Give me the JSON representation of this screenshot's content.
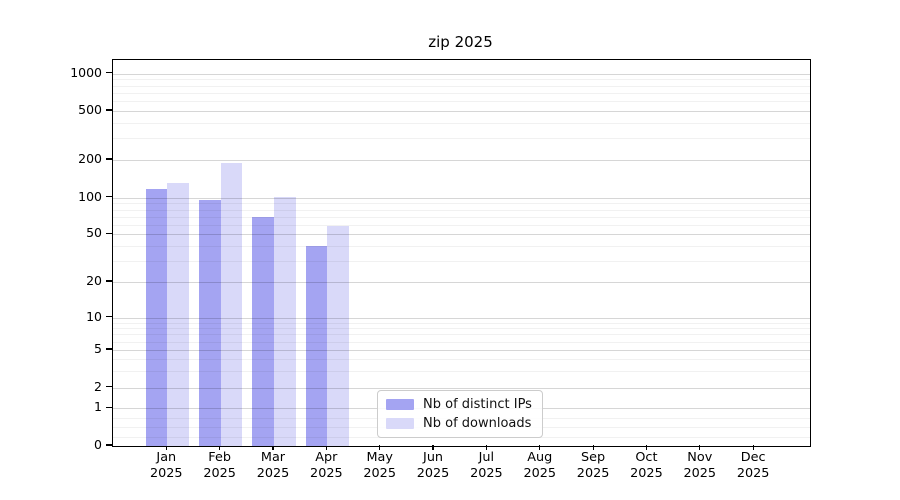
{
  "chart_data": {
    "type": "bar",
    "title": "zip 2025",
    "x_months": [
      "Jan",
      "Feb",
      "Mar",
      "Apr",
      "May",
      "Jun",
      "Jul",
      "Aug",
      "Sep",
      "Oct",
      "Nov",
      "Dec"
    ],
    "x_year": "2025",
    "series": [
      {
        "name": "Nb of distinct IPs",
        "color": "#a4a4f2",
        "values": [
          117,
          95,
          70,
          40,
          null,
          null,
          null,
          null,
          null,
          null,
          null,
          null
        ]
      },
      {
        "name": "Nb of downloads",
        "color": "#d9d9f9",
        "values": [
          131,
          188,
          102,
          58,
          null,
          null,
          null,
          null,
          null,
          null,
          null,
          null
        ]
      }
    ],
    "yscale": "symlog",
    "yticks": [
      0,
      1,
      2,
      5,
      10,
      20,
      50,
      100,
      200,
      500,
      1000
    ],
    "ylim": [
      0,
      1300
    ],
    "grid": "major-and-minor",
    "legend_position": "inside-bottom-left-of-center"
  }
}
